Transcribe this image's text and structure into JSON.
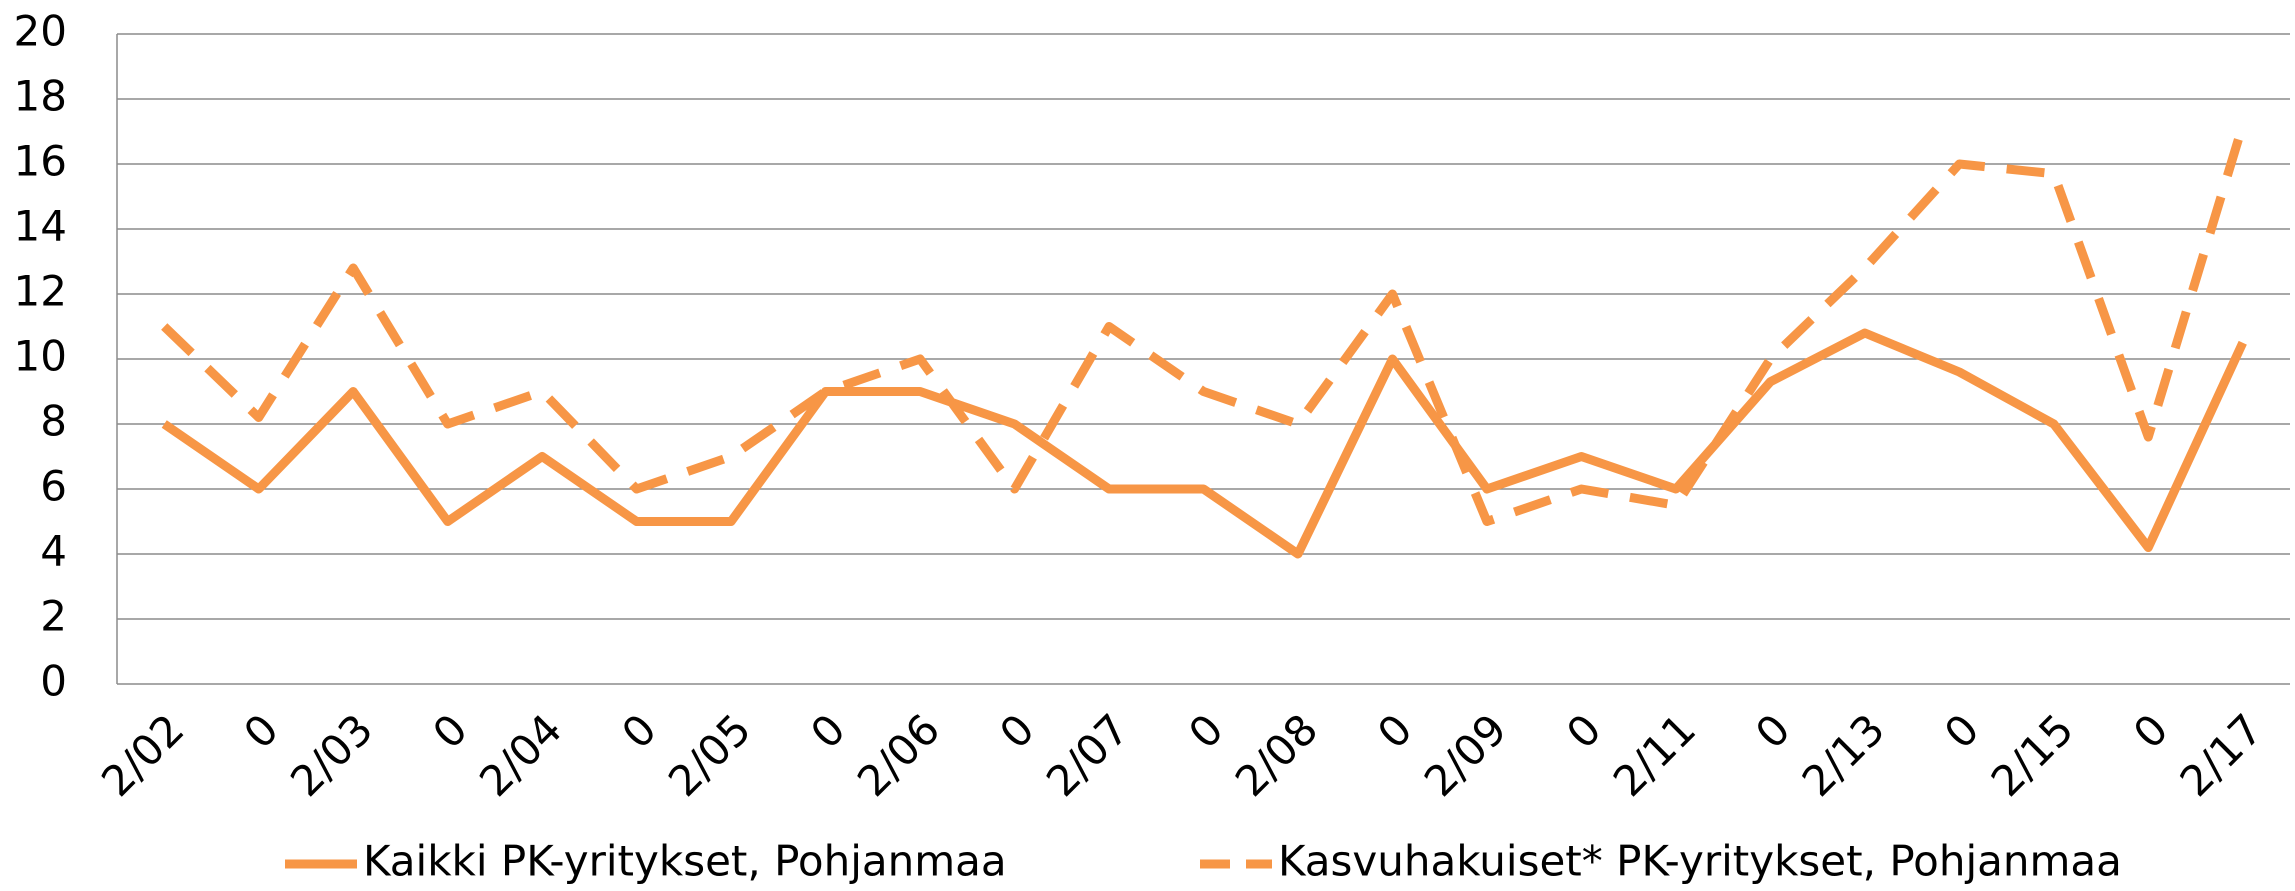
{
  "chart_data": {
    "type": "line",
    "categories": [
      "2/02",
      "0",
      "2/03",
      "0",
      "2/04",
      "0",
      "2/05",
      "0",
      "2/06",
      "0",
      "2/07",
      "0",
      "2/08",
      "0",
      "2/09",
      "0",
      "2/11",
      "0",
      "2/13",
      "0",
      "2/15",
      "0",
      "2/17"
    ],
    "series": [
      {
        "name": "Kaikki PK-yritykset, Pohjanmaa",
        "color": "#f79646",
        "dash": false,
        "values": [
          8,
          6,
          9,
          5,
          7,
          5,
          5,
          9,
          9,
          8,
          6,
          6,
          4,
          10,
          6,
          7,
          6,
          9.3,
          10.8,
          9.6,
          8,
          4.2,
          10.5
        ]
      },
      {
        "name": "Kasvuhakuiset* PK-yritykset, Pohjanmaa",
        "color": "#f79646",
        "dash": true,
        "values": [
          11,
          8.2,
          12.8,
          8,
          9,
          6,
          7,
          9,
          10,
          6,
          11,
          9,
          8,
          12,
          5,
          6,
          5.5,
          10,
          12.8,
          16,
          15.7,
          7.6,
          17.2
        ]
      }
    ],
    "ylim": [
      0,
      20
    ],
    "yticks": [
      0,
      2,
      4,
      6,
      8,
      10,
      12,
      14,
      16,
      18,
      20
    ],
    "grid": true,
    "legend": "bottom"
  }
}
